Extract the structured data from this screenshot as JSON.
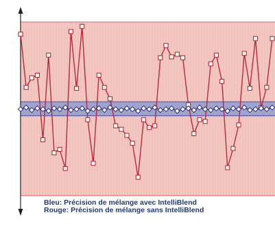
{
  "chart_data": {
    "type": "line",
    "title": "",
    "xlabel": "",
    "ylabel": "",
    "grid": true,
    "ylim": [
      -10,
      10
    ],
    "x": [
      1,
      2,
      3,
      4,
      5,
      6,
      7,
      8,
      9,
      10,
      11,
      12,
      13,
      14,
      15,
      16,
      17,
      18,
      19,
      20,
      21,
      22,
      23,
      24,
      25,
      26,
      27,
      28,
      29,
      30,
      31,
      32,
      33,
      34,
      35,
      36,
      37,
      38,
      39,
      40,
      41,
      42,
      43,
      44,
      45,
      46
    ],
    "series": [
      {
        "name": "Rouge: Précision de mélange sans IntelliBlend",
        "color": "#b8293a",
        "marker": "square",
        "values": [
          8.6,
          2.5,
          3.6,
          3.9,
          -3.5,
          6.2,
          -5.0,
          -4.6,
          -6.8,
          8.9,
          2.4,
          9.5,
          -1.2,
          -6.2,
          3.9,
          2.5,
          1.2,
          -1.9,
          -2.3,
          -3.0,
          -3.9,
          -7.8,
          -1.2,
          -2.1,
          -1.9,
          5.9,
          7.3,
          6.0,
          6.3,
          5.9,
          0.5,
          -2.8,
          -1.2,
          -1.4,
          5.2,
          6.2,
          3.2,
          -6.7,
          -4.5,
          -1.8,
          6.4,
          2.4,
          8.1,
          0.2,
          2.5,
          8.1
        ]
      },
      {
        "name": "Bleu: Précision de mélange avec IntelliBlend",
        "color": "#2d2f86",
        "marker": "diamond",
        "values": [
          0.0,
          0.2,
          -0.1,
          0.1,
          0.0,
          -0.2,
          0.1,
          0.0,
          0.2,
          -0.1,
          0.0,
          0.1,
          -0.2,
          0.0,
          0.1,
          -0.1,
          0.2,
          0.0,
          -0.1,
          0.1,
          0.0,
          -0.2,
          0.1,
          0.0,
          0.2,
          -0.1,
          0.0,
          0.1,
          -0.2,
          0.0,
          0.1,
          -0.1,
          0.2,
          0.0,
          -0.1,
          0.1,
          0.0,
          -0.2,
          0.1,
          0.0,
          0.2,
          -0.1,
          0.0,
          0.1,
          0.0,
          0.2
        ]
      }
    ],
    "bands": [
      {
        "name": "red-band",
        "from": -9.9,
        "to": 10.0,
        "color": "#f4c9c2",
        "border": "#d87b7b"
      },
      {
        "name": "blue-band",
        "from": -0.75,
        "to": 0.85,
        "color": "#9fa6cf",
        "border": "#4a4fa0"
      }
    ],
    "legend": {
      "placement": "bottom",
      "lines": [
        "Bleu: Précision de mélange avec IntelliBlend",
        "Rouge: Précision de mélange sans IntelliBlend"
      ]
    }
  }
}
